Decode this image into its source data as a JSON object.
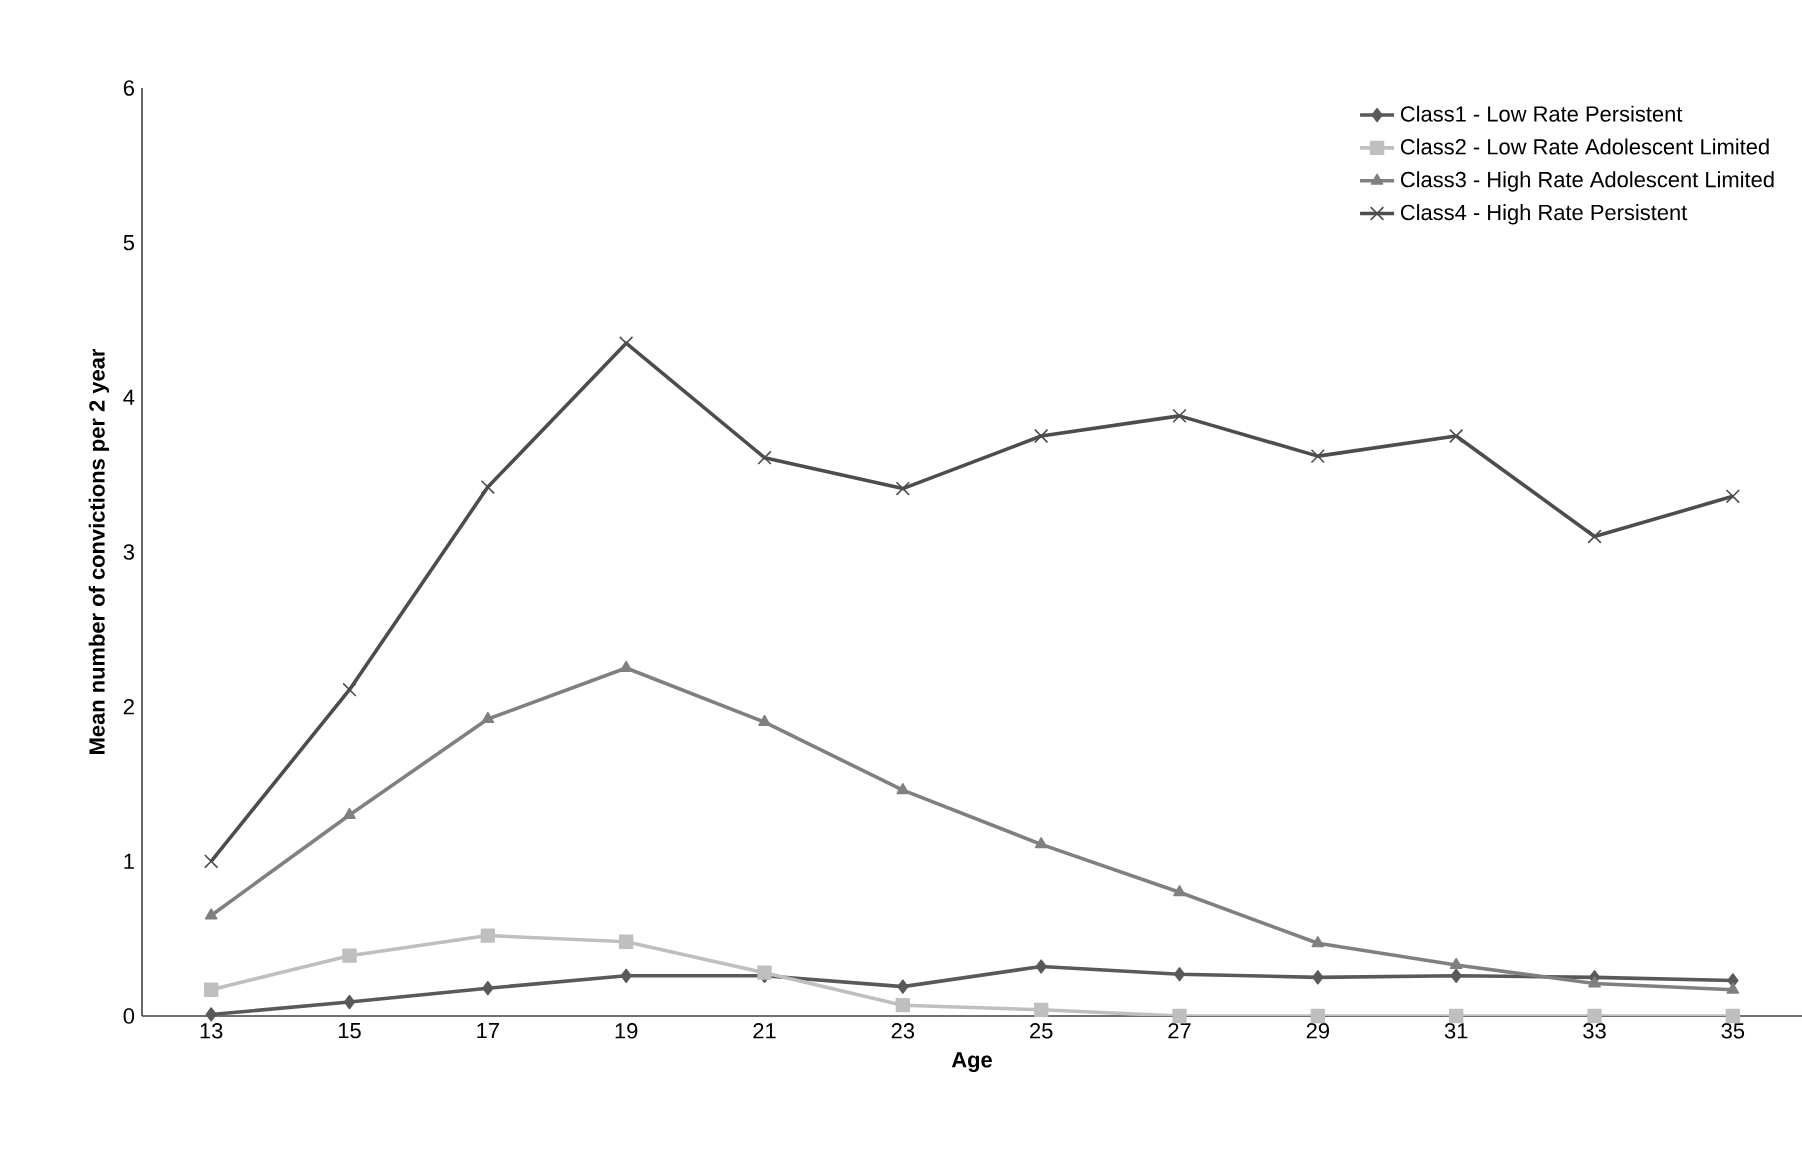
{
  "chart_data": {
    "type": "line",
    "xlabel": "Age",
    "ylabel": "Mean number of convictions per 2 year",
    "categories": [
      "13",
      "15",
      "17",
      "19",
      "21",
      "23",
      "25",
      "27",
      "29",
      "31",
      "33",
      "35"
    ],
    "ylim": [
      0,
      6
    ],
    "yticks": [
      0,
      1,
      2,
      3,
      4,
      5,
      6
    ],
    "grid": false,
    "legend": "top right",
    "line_style": "solid",
    "series": [
      {
        "name": "Class1 - Low Rate Persistent",
        "color": "#595959",
        "marker": "diamond",
        "values": [
          0.01,
          0.09,
          0.18,
          0.26,
          0.26,
          0.19,
          0.32,
          0.27,
          0.25,
          0.26,
          0.25,
          0.23
        ]
      },
      {
        "name": "Class2 - Low Rate Adolescent Limited",
        "color": "#bfbfbf",
        "marker": "square",
        "values": [
          0.17,
          0.39,
          0.52,
          0.48,
          0.28,
          0.07,
          0.04,
          0,
          0,
          0,
          0,
          0
        ]
      },
      {
        "name": "Class3 - High Rate Adolescent Limited",
        "color": "#808080",
        "marker": "triangle",
        "values": [
          0.65,
          1.3,
          1.92,
          2.25,
          1.9,
          1.46,
          1.11,
          0.8,
          0.47,
          0.33,
          0.21,
          0.17
        ]
      },
      {
        "name": "Class4 - High Rate Persistent",
        "color": "#4d4d4d",
        "marker": "cross",
        "values": [
          1.0,
          2.11,
          3.42,
          4.35,
          3.61,
          3.41,
          3.75,
          3.88,
          3.62,
          3.75,
          3.1,
          3.36
        ]
      }
    ]
  }
}
